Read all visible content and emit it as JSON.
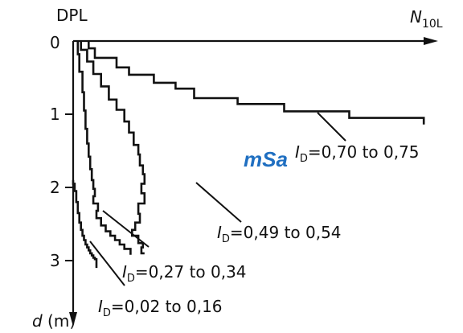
{
  "chart_data": {
    "type": "line",
    "title": "DPL",
    "xlabel": "N10L",
    "xlabel_main": "N",
    "xlabel_sub": "10L",
    "ylabel": "d (m)",
    "ylabel_var": "d",
    "ylabel_unit": " (m)",
    "ylim": [
      0,
      3.85
    ],
    "yticks": [
      "0",
      "1",
      "2",
      "3"
    ],
    "soil_label": "mSa",
    "series": [
      {
        "name": "I_D=0,70 to 0,75",
        "name_parts": {
          "var": "I",
          "sub": "D",
          "text": "=0,70 to 0,75"
        },
        "x": [
          10,
          10,
          14,
          14,
          28,
          28,
          36,
          36,
          52,
          52,
          66,
          66,
          78,
          78,
          106,
          106,
          136,
          136,
          178,
          178,
          226,
          226
        ],
        "y": [
          0,
          0.1,
          0.1,
          0.23,
          0.23,
          0.36,
          0.36,
          0.46,
          0.46,
          0.57,
          0.57,
          0.65,
          0.65,
          0.78,
          0.78,
          0.86,
          0.86,
          0.96,
          0.96,
          1.05,
          1.05,
          1.14
        ]
      },
      {
        "name": "I_D=0,49 to 0,54",
        "name_parts": {
          "var": "I",
          "sub": "D",
          "text": "=0,49 to 0,54"
        },
        "x": [
          5,
          5,
          9,
          9,
          13,
          13,
          18,
          18,
          23,
          23,
          28,
          28,
          33,
          33,
          36,
          36,
          39,
          39,
          42,
          42,
          43,
          43,
          45,
          45,
          46,
          46,
          44,
          44,
          46,
          46,
          42,
          42,
          43,
          43,
          40,
          40,
          38,
          38,
          42,
          42,
          45,
          45,
          44,
          44,
          46
        ],
        "y": [
          0,
          0.12,
          0.12,
          0.28,
          0.28,
          0.45,
          0.45,
          0.62,
          0.62,
          0.8,
          0.8,
          0.94,
          0.94,
          1.1,
          1.1,
          1.25,
          1.25,
          1.42,
          1.42,
          1.55,
          1.55,
          1.7,
          1.7,
          1.82,
          1.82,
          1.95,
          1.95,
          2.08,
          2.08,
          2.22,
          2.22,
          2.36,
          2.36,
          2.48,
          2.48,
          2.58,
          2.58,
          2.66,
          2.66,
          2.76,
          2.76,
          2.82,
          2.82,
          2.9,
          2.9
        ]
      },
      {
        "name": "I_D=0,27 to 0,34",
        "name_parts": {
          "var": "I",
          "sub": "D",
          "text": "=0,27 to 0,34"
        },
        "x": [
          3,
          3,
          4,
          4,
          6,
          6,
          7,
          7,
          8,
          8,
          9,
          9,
          10,
          10,
          11,
          11,
          12,
          12,
          13,
          13,
          14,
          14,
          13,
          13,
          16,
          16,
          15,
          15,
          18,
          18,
          21,
          21,
          24,
          24,
          27,
          27,
          30,
          30,
          33,
          33,
          37,
          37
        ],
        "y": [
          0,
          0.18,
          0.18,
          0.42,
          0.42,
          0.7,
          0.7,
          0.95,
          0.95,
          1.2,
          1.2,
          1.4,
          1.4,
          1.58,
          1.58,
          1.75,
          1.75,
          1.9,
          1.9,
          2.02,
          2.02,
          2.12,
          2.12,
          2.22,
          2.22,
          2.32,
          2.32,
          2.42,
          2.42,
          2.52,
          2.52,
          2.6,
          2.6,
          2.66,
          2.66,
          2.72,
          2.72,
          2.78,
          2.78,
          2.84,
          2.84,
          2.92
        ]
      },
      {
        "name": "I_D=0,02 to 0,16",
        "name_parts": {
          "var": "I",
          "sub": "D",
          "text": "=0,02 to 0,16"
        },
        "x": [
          0,
          0,
          1,
          1,
          2,
          2,
          3,
          3,
          4,
          4,
          5,
          5,
          6,
          6,
          7,
          7,
          8,
          8,
          9,
          9,
          10,
          10,
          11,
          11,
          12,
          12,
          13,
          13,
          14,
          14,
          15,
          15
        ],
        "y": [
          1.9,
          1.95,
          1.95,
          2.05,
          2.05,
          2.2,
          2.2,
          2.35,
          2.35,
          2.48,
          2.48,
          2.58,
          2.58,
          2.66,
          2.66,
          2.72,
          2.72,
          2.78,
          2.78,
          2.82,
          2.82,
          2.86,
          2.86,
          2.9,
          2.9,
          2.93,
          2.93,
          2.96,
          2.96,
          2.98,
          2.98,
          3.1
        ]
      }
    ]
  }
}
